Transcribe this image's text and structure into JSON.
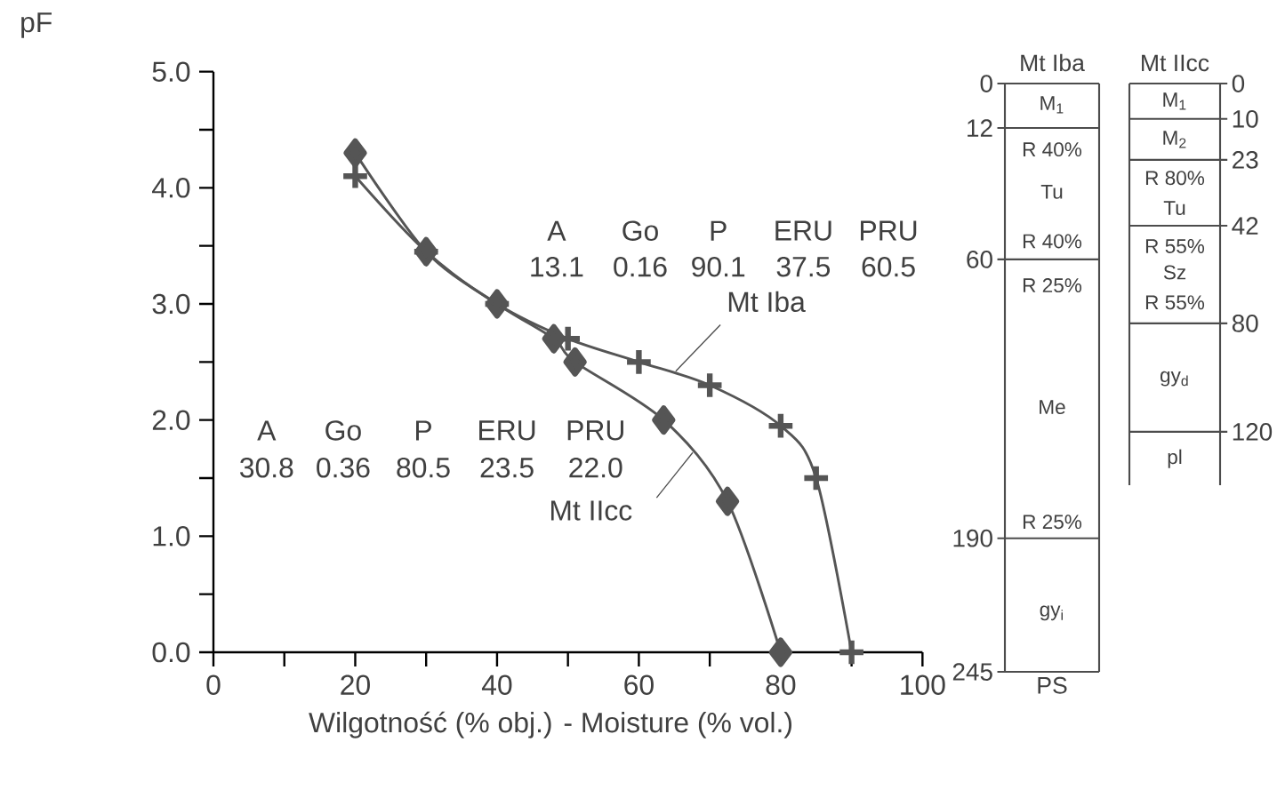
{
  "chart_data": [
    {
      "type": "line",
      "xlabel": "Wilgotność (% obj.) - Moisture (% vol.)",
      "ylabel": "pF",
      "xlim": [
        0,
        100
      ],
      "ylim": [
        0,
        5
      ],
      "xticks": [
        0,
        {
          "value": 10,
          "label": null
        },
        20,
        {
          "value": 30,
          "label": null
        },
        40,
        {
          "value": 50,
          "label": null
        },
        60,
        {
          "value": 70,
          "label": null
        },
        80,
        {
          "value": 90,
          "label": null
        },
        100
      ],
      "yticks": [
        {
          "value": 0,
          "label": "0.0"
        },
        {
          "value": 0.5,
          "label": null
        },
        {
          "value": 1,
          "label": "1.0"
        },
        {
          "value": 1.5,
          "label": null
        },
        {
          "value": 2,
          "label": "2.0"
        },
        {
          "value": 2.5,
          "label": null
        },
        {
          "value": 3,
          "label": "3.0"
        },
        {
          "value": 3.5,
          "label": null
        },
        {
          "value": 4,
          "label": "4.0"
        },
        {
          "value": 4.5,
          "label": null
        },
        {
          "value": 5,
          "label": "5.0"
        }
      ],
      "series": [
        {
          "name": "Mt Iba",
          "color": "#555555",
          "marker": "cross",
          "x": [
            20,
            30,
            40,
            50,
            60,
            70,
            80,
            85,
            90
          ],
          "values": [
            4.1,
            3.45,
            3.0,
            2.7,
            2.5,
            2.3,
            1.95,
            1.5,
            0
          ]
        },
        {
          "name": "Mt IIcc",
          "color": "#555555",
          "marker": "diamond",
          "x": [
            20,
            30,
            40,
            48,
            51,
            63.5,
            72.5,
            80
          ],
          "values": [
            4.3,
            3.45,
            3.0,
            2.7,
            2.5,
            2.0,
            1.3,
            0
          ]
        }
      ],
      "annotations": [
        "A",
        "Go",
        "P",
        "ERU",
        "PRU",
        "13.1",
        "0.16",
        "90.1",
        "37.5",
        "60.5",
        "A",
        "Go",
        "P",
        "ERU",
        "PRU",
        "30.8",
        "0.36",
        "80.5",
        "23.5",
        "22.0"
      ]
    },
    {
      "type": "other",
      "title": "Mt Iba",
      "xlabel": "PS",
      "annotations": [
        "0",
        "M$_{1}$",
        "12",
        "R 40%",
        "Tu",
        "R 40%",
        "60",
        "R 25%",
        "Me",
        "R 25%",
        "190",
        "gy$_{i}$",
        "245"
      ]
    },
    {
      "type": "other",
      "title": "Mt IIcc",
      "annotations": [
        "0",
        "M$_{1}$",
        "10",
        "M$_{2}$",
        "23",
        "R 80%",
        "Tu",
        "42",
        "R 55%",
        "Sz",
        "R 55%",
        "80",
        "gy$_{d}$",
        "120",
        "pl"
      ]
    }
  ]
}
